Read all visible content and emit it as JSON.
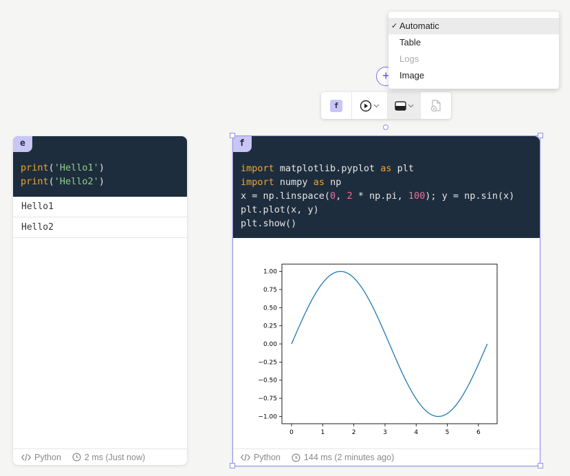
{
  "cell_e": {
    "badge": "e",
    "code_lines": [
      [
        {
          "t": "print",
          "c": "kw"
        },
        {
          "t": "(",
          "c": "punc"
        },
        {
          "t": "'Hello1'",
          "c": "str"
        },
        {
          "t": ")",
          "c": "punc"
        }
      ],
      [
        {
          "t": "print",
          "c": "kw"
        },
        {
          "t": "(",
          "c": "punc"
        },
        {
          "t": "'Hello2'",
          "c": "str"
        },
        {
          "t": ")",
          "c": "punc"
        }
      ]
    ],
    "outputs": [
      "Hello1",
      "Hello2"
    ],
    "language": "Python",
    "runtime": "2 ms (Just now)"
  },
  "cell_f": {
    "badge": "f",
    "code_lines": [
      [
        {
          "t": "import",
          "c": "kw"
        },
        {
          "t": " matplotlib.pyplot ",
          "c": "punc"
        },
        {
          "t": "as",
          "c": "kw"
        },
        {
          "t": " plt",
          "c": "punc"
        }
      ],
      [
        {
          "t": "import",
          "c": "kw"
        },
        {
          "t": " numpy ",
          "c": "punc"
        },
        {
          "t": "as",
          "c": "kw"
        },
        {
          "t": " np",
          "c": "punc"
        }
      ],
      [
        {
          "t": "x = np.linspace(",
          "c": "punc"
        },
        {
          "t": "0",
          "c": "num"
        },
        {
          "t": ", ",
          "c": "punc"
        },
        {
          "t": "2",
          "c": "num"
        },
        {
          "t": " * np.pi, ",
          "c": "punc"
        },
        {
          "t": "100",
          "c": "num"
        },
        {
          "t": "); y = np.sin(x)",
          "c": "punc"
        }
      ],
      [
        {
          "t": "plt.plot(x, y)",
          "c": "punc"
        }
      ],
      [
        {
          "t": "plt.show()",
          "c": "punc"
        }
      ]
    ],
    "language": "Python",
    "runtime": "144 ms (2 minutes ago)"
  },
  "toolbar": {
    "cell_label": "f",
    "icons": [
      "cell-label-icon",
      "run-icon",
      "output-display-icon",
      "file-settings-icon"
    ]
  },
  "dropdown": {
    "items": [
      {
        "label": "Automatic",
        "selected": true,
        "disabled": false
      },
      {
        "label": "Table",
        "selected": false,
        "disabled": false
      },
      {
        "label": "Logs",
        "selected": false,
        "disabled": true
      },
      {
        "label": "Image",
        "selected": false,
        "disabled": false
      }
    ],
    "check_mark": "✓"
  },
  "add_button": "+",
  "colors": {
    "code_bg": "#1e2d3d",
    "keyword": "#f0a62b",
    "string": "#8fd08a",
    "number": "#e8729a",
    "badge_bg": "#c9c5f6",
    "selection": "#8f8fe8",
    "plot_line": "#1f77b4"
  },
  "chart_data": {
    "type": "line",
    "title": "",
    "xlabel": "",
    "ylabel": "",
    "xlim": [
      -0.31,
      6.6
    ],
    "ylim": [
      -1.1,
      1.1
    ],
    "xticks": [
      "0",
      "1",
      "2",
      "3",
      "4",
      "5",
      "6"
    ],
    "yticks": [
      "1.00",
      "0.75",
      "0.50",
      "0.25",
      "0.00",
      "−0.25",
      "−0.50",
      "−0.75",
      "−1.00"
    ],
    "ytick_values": [
      1.0,
      0.75,
      0.5,
      0.25,
      0.0,
      -0.25,
      -0.5,
      -0.75,
      -1.0
    ],
    "series": [
      {
        "x": [
          0,
          0.317,
          0.635,
          0.952,
          1.269,
          1.587,
          1.904,
          2.221,
          2.539,
          2.856,
          3.173,
          3.491,
          3.808,
          4.125,
          4.443,
          4.76,
          5.077,
          5.395,
          5.712,
          6.029,
          6.283
        ],
        "y": [
          0,
          0.312,
          0.593,
          0.815,
          0.955,
          1.0,
          0.945,
          0.796,
          0.567,
          0.281,
          -0.031,
          -0.343,
          -0.617,
          -0.831,
          -0.963,
          -0.999,
          -0.935,
          -0.776,
          -0.541,
          -0.25,
          0
        ]
      }
    ],
    "grid": false
  }
}
